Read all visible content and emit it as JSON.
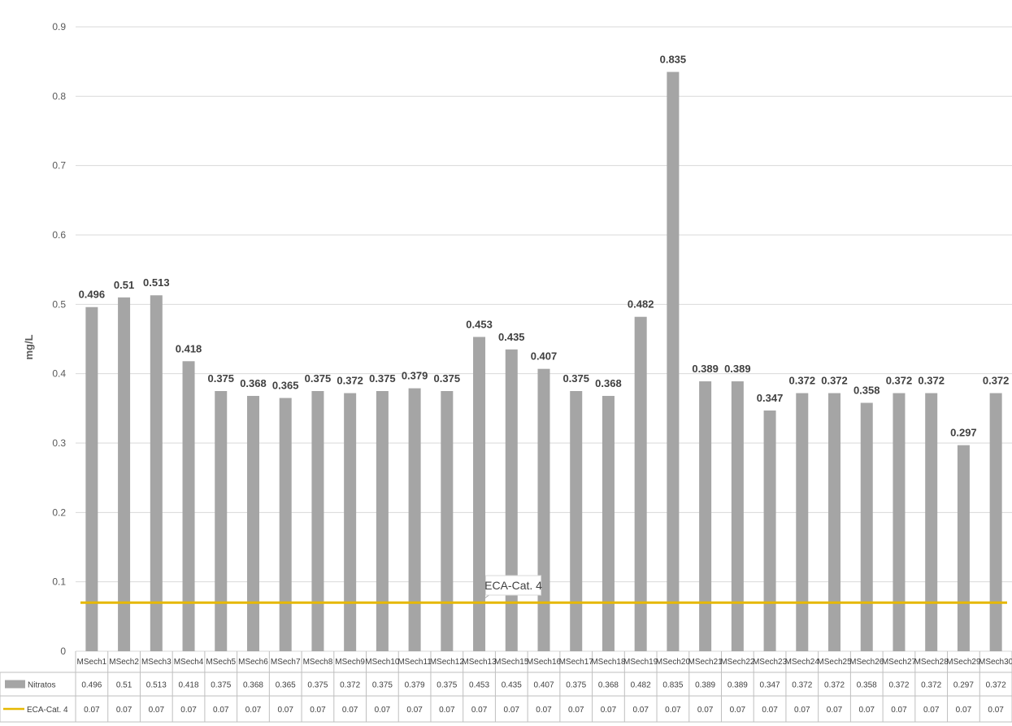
{
  "chart_data": {
    "type": "bar",
    "title": "",
    "xlabel": "",
    "ylabel": "mg/L",
    "ylim": [
      0,
      0.9
    ],
    "yticks": [
      "0",
      "0.1",
      "0.2",
      "0.3",
      "0.4",
      "0.5",
      "0.6",
      "0.7",
      "0.8",
      "0.9"
    ],
    "grid": true,
    "categories": [
      "MSech1",
      "MSech2",
      "MSech3",
      "MSech4",
      "MSech5",
      "MSech6",
      "MSech7",
      "MSech8",
      "MSech9",
      "MSech10",
      "MSech11",
      "MSech12",
      "MSech13",
      "MSech15",
      "MSech16",
      "MSech17",
      "MSech18",
      "MSech19",
      "MSech20",
      "MSech21",
      "MSech22",
      "MSech23",
      "MSech24",
      "MSech25",
      "MSech26",
      "MSech27",
      "MSech28",
      "MSech29",
      "MSech30"
    ],
    "series": [
      {
        "name": "Nitratos",
        "type": "bar",
        "color": "#a5a5a5",
        "values": [
          0.496,
          0.51,
          0.513,
          0.418,
          0.375,
          0.368,
          0.365,
          0.375,
          0.372,
          0.375,
          0.379,
          0.375,
          0.453,
          0.435,
          0.407,
          0.375,
          0.368,
          0.482,
          0.835,
          0.389,
          0.389,
          0.347,
          0.372,
          0.372,
          0.358,
          0.372,
          0.372,
          0.297,
          0.372
        ],
        "labels": [
          "0.496",
          "0.51",
          "0.513",
          "0.418",
          "0.375",
          "0.368",
          "0.365",
          "0.375",
          "0.372",
          "0.375",
          "0.379",
          "0.375",
          "0.453",
          "0.435",
          "0.407",
          "0.375",
          "0.368",
          "0.482",
          "0.835",
          "0.389",
          "0.389",
          "0.347",
          "0.372",
          "0.372",
          "0.358",
          "0.372",
          "0.372",
          "0.297",
          "0.372"
        ]
      },
      {
        "name": "ECA-Cat. 4",
        "type": "line",
        "color": "#e6b800",
        "values": [
          0.07,
          0.07,
          0.07,
          0.07,
          0.07,
          0.07,
          0.07,
          0.07,
          0.07,
          0.07,
          0.07,
          0.07,
          0.07,
          0.07,
          0.07,
          0.07,
          0.07,
          0.07,
          0.07,
          0.07,
          0.07,
          0.07,
          0.07,
          0.07,
          0.07,
          0.07,
          0.07,
          0.07,
          0.07
        ],
        "labels": [
          "0.07",
          "0.07",
          "0.07",
          "0.07",
          "0.07",
          "0.07",
          "0.07",
          "0.07",
          "0.07",
          "0.07",
          "0.07",
          "0.07",
          "0.07",
          "0.07",
          "0.07",
          "0.07",
          "0.07",
          "0.07",
          "0.07",
          "0.07",
          "0.07",
          "0.07",
          "0.07",
          "0.07",
          "0.07",
          "0.07",
          "0.07",
          "0.07",
          "0.07"
        ]
      }
    ],
    "annotations": [
      {
        "text": "ECA-Cat. 4",
        "series": "ECA-Cat. 4",
        "category": "MSech13"
      }
    ],
    "legend": "data-table-below"
  }
}
